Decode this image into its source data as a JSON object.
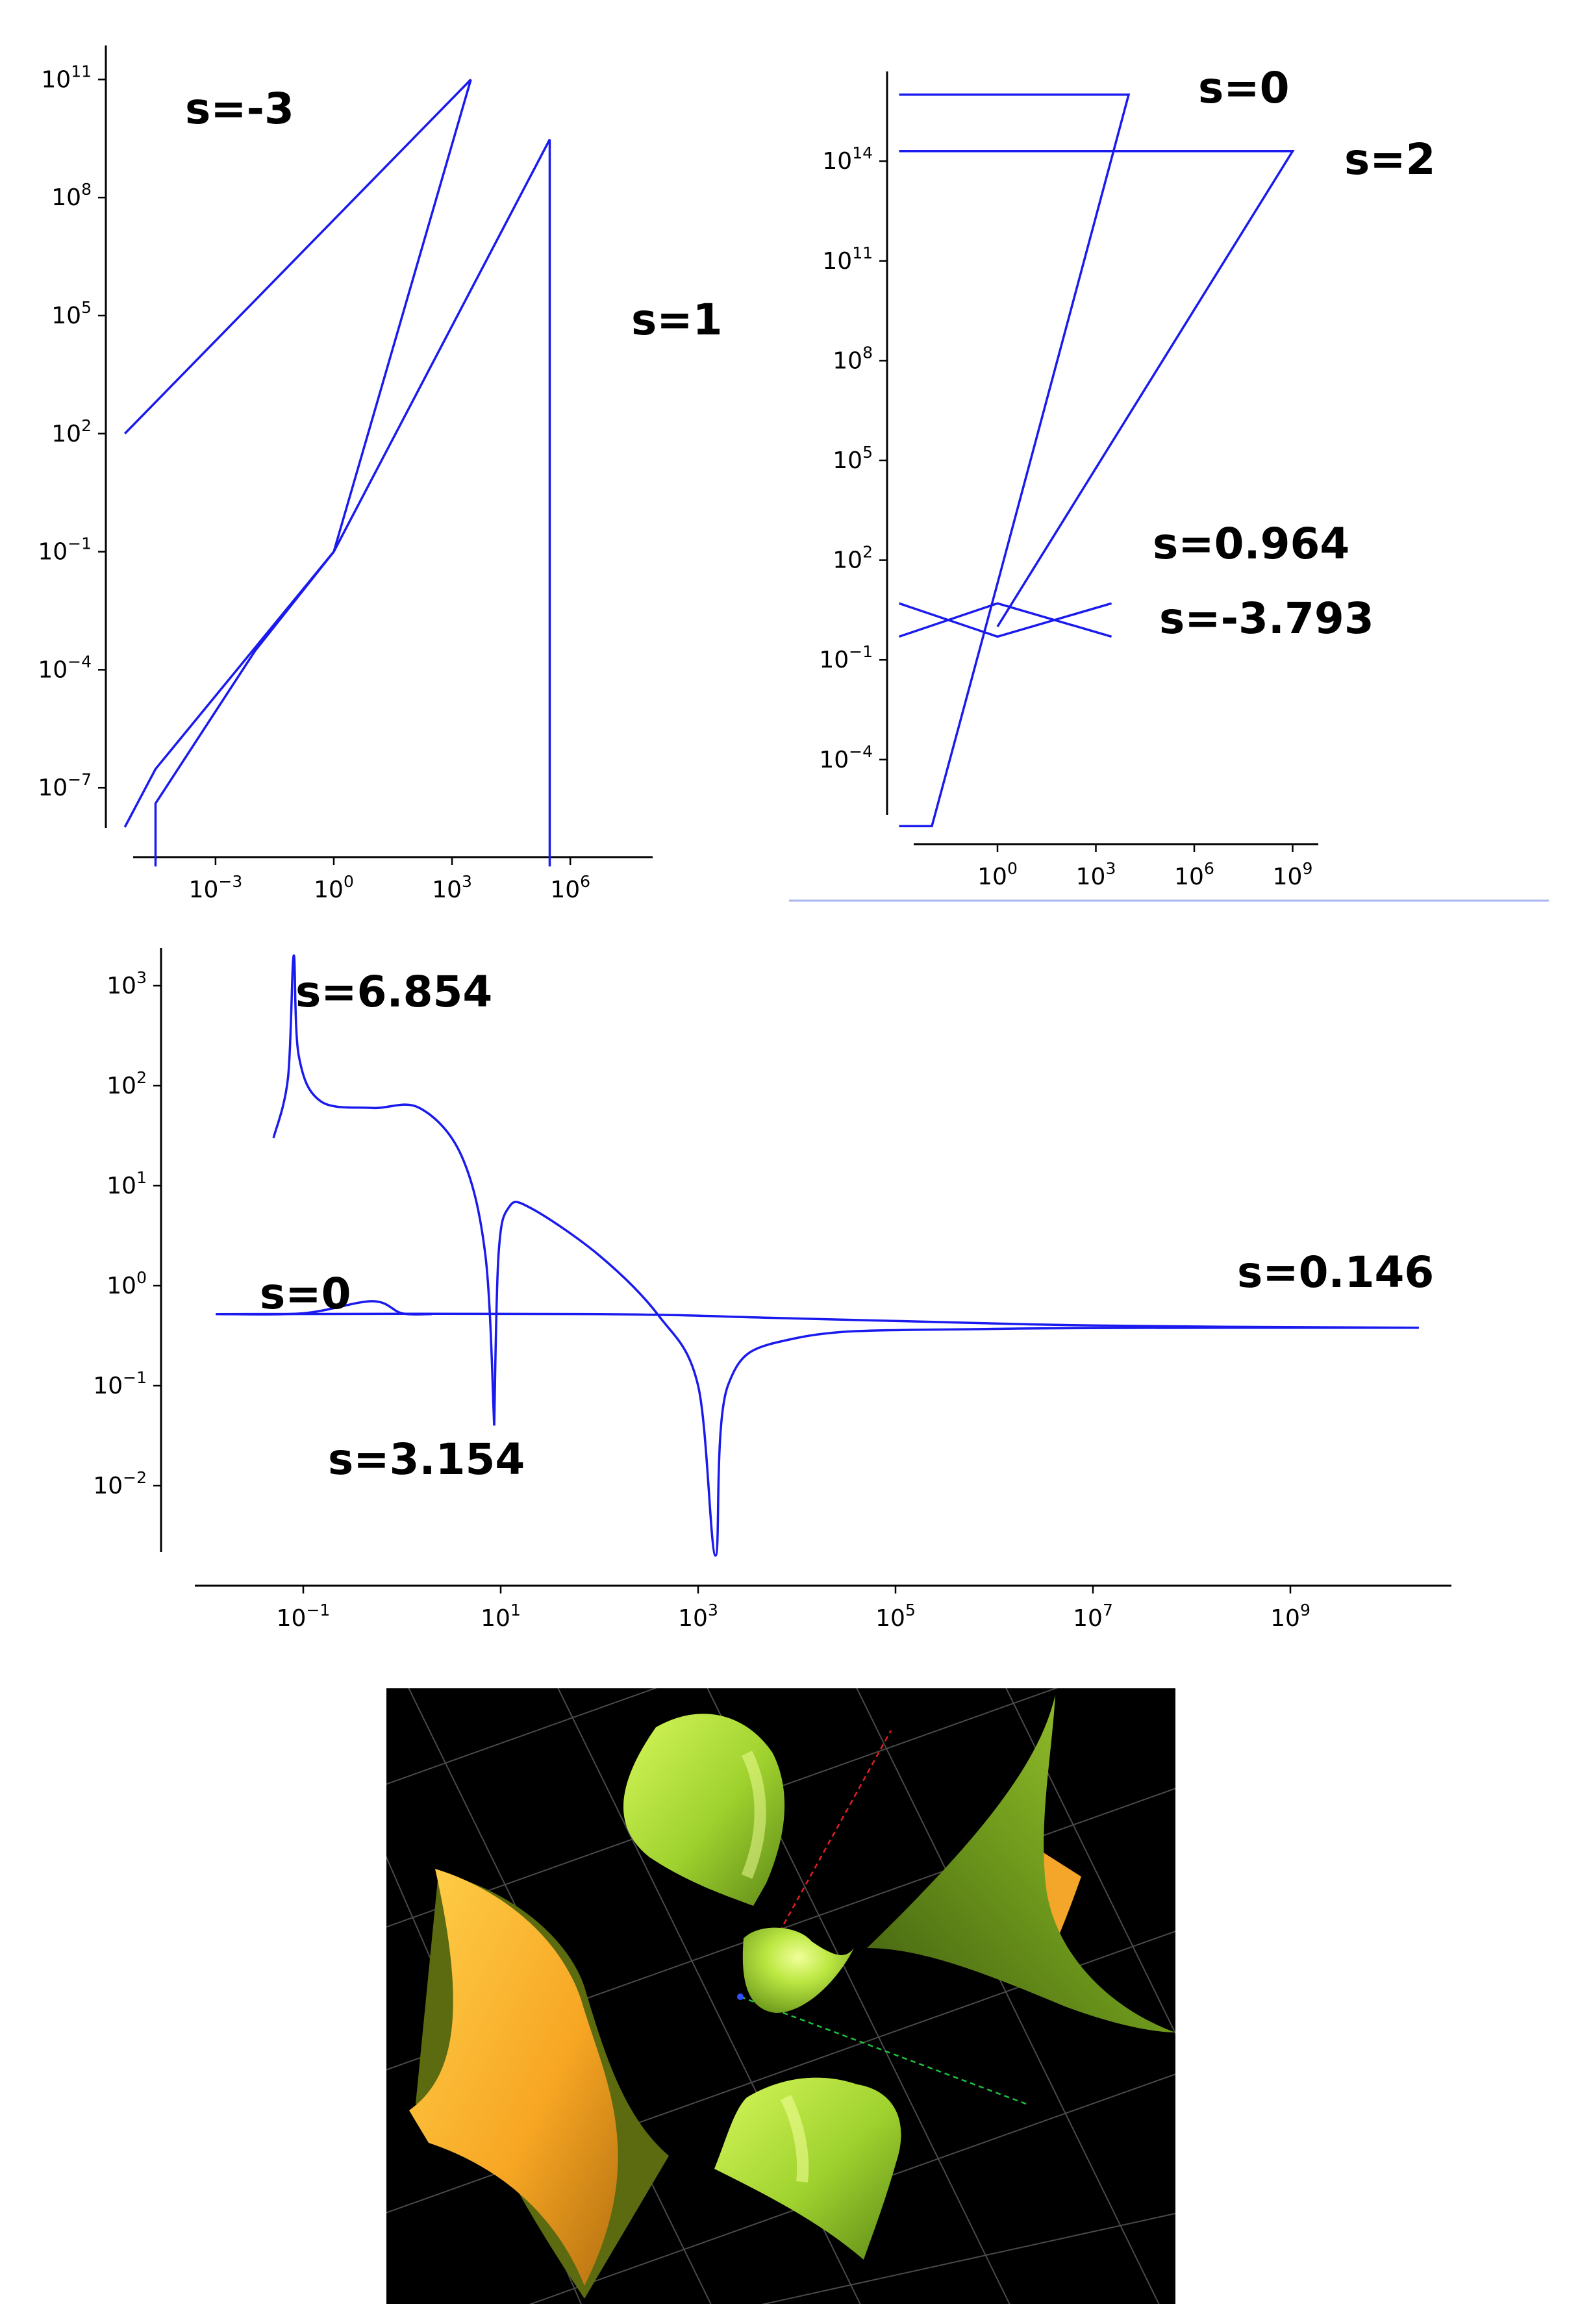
{
  "chart_data": [
    {
      "type": "line",
      "xscale": "log",
      "yscale": "log",
      "xlim": [
        1e-05,
        10000000.0
      ],
      "ylim": [
        1e-09,
        100000000000.0
      ],
      "xticks": [
        "10^-3",
        "10^0",
        "10^3",
        "10^6"
      ],
      "yticks": [
        "10^-7",
        "10^-4",
        "10^-1",
        "10^2",
        "10^5",
        "10^8",
        "10^11"
      ],
      "annotations": [
        "s=-3",
        "s=1"
      ],
      "series": [
        {
          "points": [
            [
              5e-06,
              100.0
            ],
            [
              3000,
              100000000000.0
            ]
          ]
        },
        {
          "points": [
            [
              3000,
              100000000000.0
            ],
            [
              1,
              0.1
            ],
            [
              0.01,
              0.0003
            ],
            [
              3e-05,
              4e-08
            ],
            [
              3e-05,
              1e-09
            ]
          ]
        },
        {
          "points": [
            [
              5e-06,
              1e-08
            ],
            [
              3e-05,
              3e-07
            ],
            [
              1,
              0.1
            ],
            [
              300000.0,
              3000000000.0
            ],
            [
              300000.0,
              1e-09
            ]
          ]
        }
      ]
    },
    {
      "type": "line",
      "xscale": "log",
      "yscale": "log",
      "xlim": [
        0.001,
        10000000000.0
      ],
      "ylim": [
        1e-06,
        1e+16
      ],
      "xticks": [
        "10^0",
        "10^3",
        "10^6",
        "10^9"
      ],
      "yticks": [
        "10^-4",
        "10^-1",
        "10^2",
        "10^5",
        "10^8",
        "10^11",
        "10^14"
      ],
      "annotations": [
        "s=0",
        "s=2",
        "s=0.964",
        "s=-3.793"
      ],
      "series": [
        {
          "points": [
            [
              0.001,
              1e+16
            ],
            [
              10000.0,
              1e+16
            ],
            [
              1,
              20
            ],
            [
              0.01,
              1e-06
            ],
            [
              0.001,
              1e-06
            ]
          ]
        },
        {
          "points": [
            [
              0.001,
              200000000000000.0
            ],
            [
              1000000000.0,
              200000000000000.0
            ],
            [
              1,
              1
            ]
          ]
        },
        {
          "points": [
            [
              0.001,
              5
            ],
            [
              1,
              0.5
            ],
            [
              3000,
              5
            ]
          ]
        },
        {
          "points": [
            [
              0.001,
              0.5
            ],
            [
              1,
              5
            ],
            [
              3000,
              0.5
            ]
          ]
        }
      ]
    },
    {
      "type": "line",
      "xscale": "log",
      "yscale": "log",
      "xlim": [
        0.01,
        30000000000.0
      ],
      "ylim": [
        0.003,
        3000
      ],
      "xticks": [
        "10^-1",
        "10^1",
        "10^3",
        "10^5",
        "10^7",
        "10^9"
      ],
      "yticks": [
        "10^-2",
        "10^-1",
        "10^0",
        "10^1",
        "10^2",
        "10^3"
      ],
      "annotations": [
        "s=6.854",
        "s=0",
        "s=3.154",
        "s=0.146"
      ],
      "series": [
        {
          "name": "s=6.854 branch",
          "points": [
            [
              0.05,
              30
            ],
            [
              0.07,
              120
            ],
            [
              0.08,
              2000
            ],
            [
              0.09,
              200
            ],
            [
              0.15,
              70
            ],
            [
              0.5,
              60
            ],
            [
              1.5,
              60
            ],
            [
              4,
              20
            ],
            [
              7,
              2
            ],
            [
              8.6,
              0.04
            ]
          ]
        },
        {
          "name": "s=3.154 branch",
          "points": [
            [
              8.6,
              0.04
            ],
            [
              9.5,
              2
            ],
            [
              12,
              6
            ],
            [
              20,
              6
            ],
            [
              100,
              2
            ],
            [
              400,
              0.5
            ],
            [
              1000,
              0.1
            ],
            [
              1500,
              0.002
            ],
            [
              2000,
              0.1
            ],
            [
              10000.0,
              0.3
            ],
            [
              1000000.0,
              0.37
            ],
            [
              20000000000.0,
              0.38
            ]
          ]
        },
        {
          "name": "s=0 branch",
          "points": [
            [
              0.013,
              0.52
            ],
            [
              0.1,
              0.53
            ],
            [
              0.5,
              0.7
            ],
            [
              1,
              0.53
            ],
            [
              2,
              0.52
            ]
          ]
        },
        {
          "name": "s=0.146 branch",
          "points": [
            [
              0.013,
              0.52
            ],
            [
              100,
              0.52
            ],
            [
              10000.0,
              0.47
            ],
            [
              10000000.0,
              0.4
            ],
            [
              20000000000.0,
              0.38
            ]
          ]
        }
      ]
    }
  ],
  "render": {
    "colors": {
      "curve": "#1a1aee",
      "background": "#000000",
      "grid": "#6a6a6a",
      "surface_green_light": "#c8f24a",
      "surface_green_dark": "#4d6a14",
      "surface_orange_light": "#ffc93a",
      "surface_orange_dark": "#8a5a10",
      "axis_red": "#e02020",
      "axis_green": "#20c040",
      "axis_blue": "#3050ff"
    },
    "icon": "3d-surface-render"
  }
}
